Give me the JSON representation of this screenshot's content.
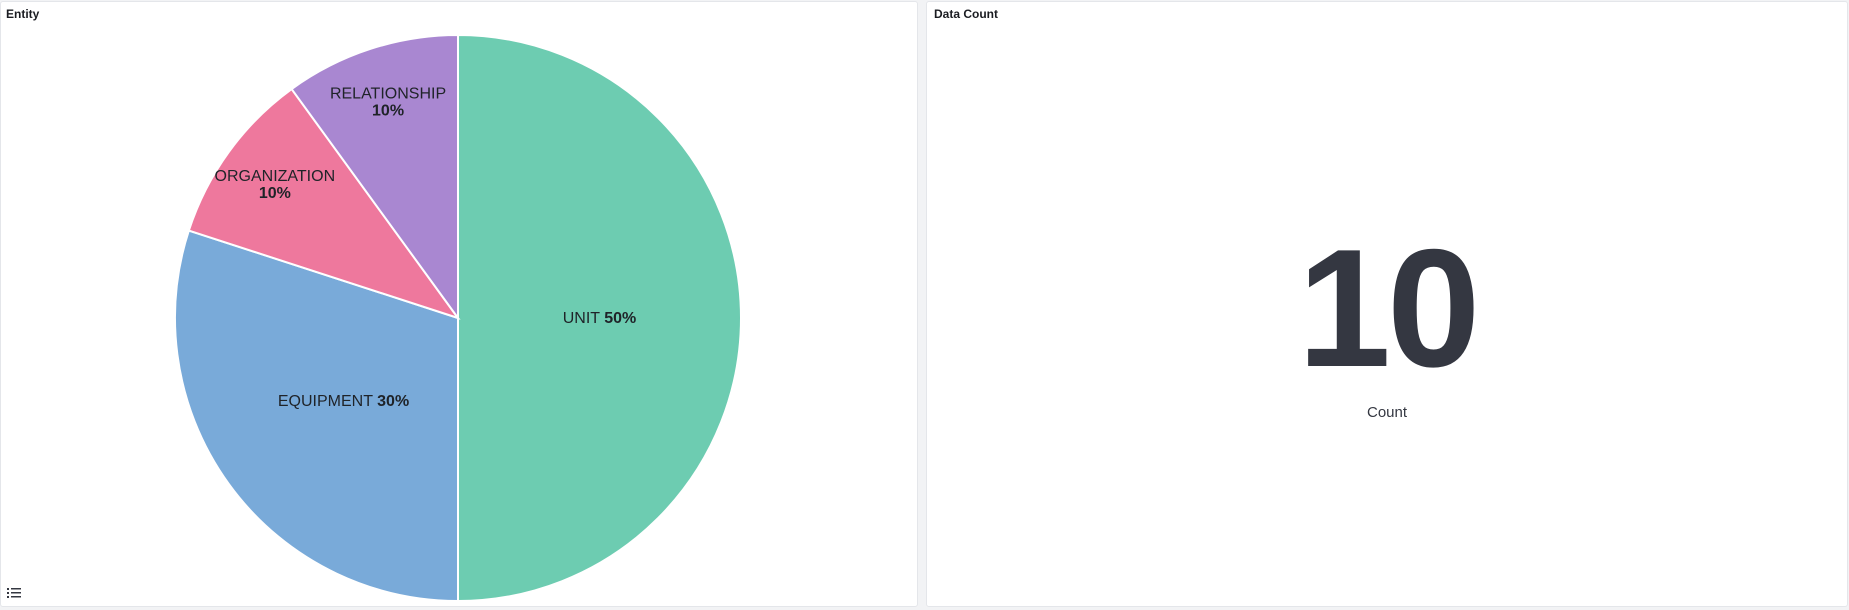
{
  "panels": {
    "entity": {
      "title": "Entity"
    },
    "count": {
      "title": "Data Count",
      "value": "10",
      "label": "Count"
    }
  },
  "icons": {
    "legend_toggle": "list-icon"
  },
  "chart_data": {
    "type": "pie",
    "slices": [
      {
        "label": "UNIT",
        "percent_label": "50%",
        "value": 50,
        "color": "#6dccb1"
      },
      {
        "label": "EQUIPMENT",
        "percent_label": "30%",
        "value": 30,
        "color": "#79aad9"
      },
      {
        "label": "ORGANIZATION",
        "percent_label": "10%",
        "value": 10,
        "color": "#ee789d"
      },
      {
        "label": "RELATIONSHIP",
        "percent_label": "10%",
        "value": 10,
        "color": "#a987d1"
      }
    ]
  }
}
